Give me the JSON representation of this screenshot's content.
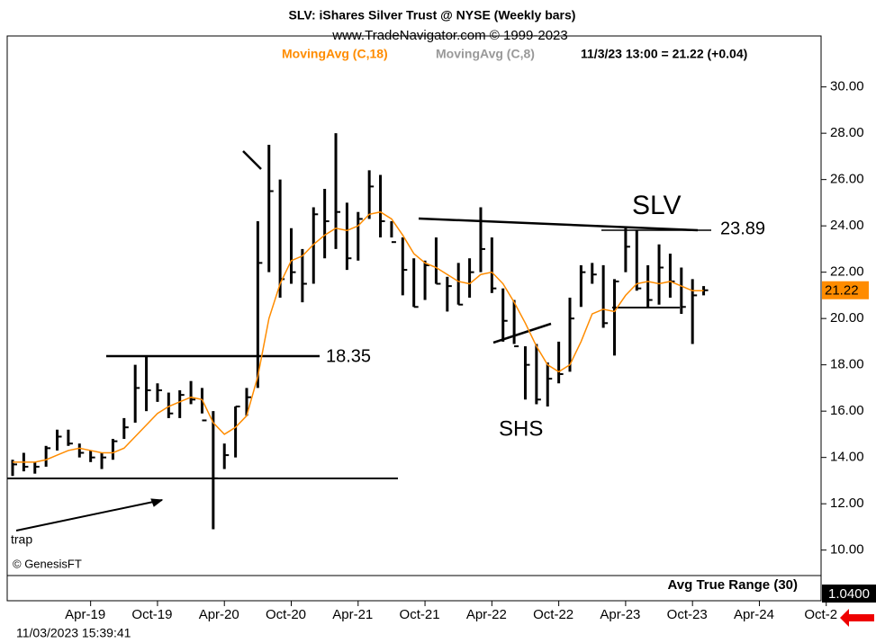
{
  "chart_data": {
    "type": "ohlc",
    "title": "SLV:  iShares Silver Trust @ NYSE  (Weekly bars)",
    "subtitle": "www.TradeNavigator.com © 1999-2023",
    "legend": [
      "MovingAvg (C,18)",
      "MovingAvg (C,8)"
    ],
    "last_quote": "11/3/23 13:00 = 21.22 (+0.04)",
    "last_price_label": "21.22",
    "x": [
      "Sep-18",
      "Oct-18",
      "Nov-18",
      "Dec-18",
      "Jan-19",
      "Feb-19",
      "Mar-19",
      "Apr-19",
      "May-19",
      "Jun-19",
      "Jul-19",
      "Aug-19",
      "Sep-19",
      "Oct-19",
      "Nov-19",
      "Dec-19",
      "Jan-20",
      "Feb-20",
      "Mar-20",
      "Apr-20",
      "May-20",
      "Jun-20",
      "Jul-20",
      "Aug-20",
      "Sep-20",
      "Oct-20",
      "Nov-20",
      "Dec-20",
      "Jan-21",
      "Feb-21",
      "Mar-21",
      "Apr-21",
      "May-21",
      "Jun-21",
      "Jul-21",
      "Aug-21",
      "Sep-21",
      "Oct-21",
      "Nov-21",
      "Dec-21",
      "Jan-22",
      "Feb-22",
      "Mar-22",
      "Apr-22",
      "May-22",
      "Jun-22",
      "Jul-22",
      "Aug-22",
      "Sep-22",
      "Oct-22",
      "Nov-22",
      "Dec-22",
      "Jan-23",
      "Feb-23",
      "Mar-23",
      "Apr-23",
      "May-23",
      "Jun-23",
      "Jul-23",
      "Aug-23",
      "Sep-23",
      "Oct-23",
      "Nov-23"
    ],
    "low": [
      13.2,
      13.4,
      13.3,
      13.6,
      14.3,
      14.5,
      14.0,
      13.8,
      13.5,
      13.9,
      14.8,
      15.5,
      16.0,
      16.4,
      15.7,
      15.7,
      16.3,
      15.9,
      10.9,
      13.5,
      14.0,
      15.8,
      17.0,
      22.0,
      20.9,
      21.5,
      20.7,
      21.5,
      22.6,
      23.0,
      22.1,
      22.5,
      24.3,
      23.5,
      23.5,
      21.0,
      20.5,
      20.8,
      21.5,
      20.3,
      20.6,
      20.9,
      22.0,
      21.1,
      19.0,
      18.9,
      16.5,
      16.3,
      16.2,
      17.2,
      17.7,
      20.5,
      21.5,
      19.6,
      18.4,
      22.0,
      21.2,
      20.5,
      20.6,
      20.9,
      20.2,
      18.9,
      21.0
    ],
    "high": [
      13.9,
      14.2,
      13.8,
      14.5,
      15.2,
      15.2,
      14.6,
      14.3,
      14.2,
      14.8,
      15.7,
      18.0,
      18.35,
      17.2,
      16.8,
      16.9,
      17.3,
      17.0,
      16.0,
      14.6,
      16.2,
      17.0,
      24.2,
      27.5,
      26.0,
      23.9,
      23.0,
      24.8,
      25.6,
      28.0,
      25.0,
      24.6,
      26.4,
      26.2,
      24.2,
      23.5,
      22.6,
      22.5,
      23.5,
      21.8,
      22.4,
      22.6,
      24.8,
      23.5,
      21.3,
      20.8,
      18.8,
      18.9,
      18.1,
      19.0,
      20.9,
      22.3,
      22.4,
      22.3,
      21.7,
      23.9,
      23.8,
      22.3,
      23.2,
      22.8,
      22.2,
      21.7,
      21.4
    ],
    "close": [
      13.7,
      13.6,
      13.6,
      14.4,
      14.9,
      14.6,
      14.2,
      14.0,
      14.0,
      14.7,
      15.3,
      17.0,
      16.9,
      16.9,
      15.9,
      16.7,
      16.5,
      15.6,
      13.1,
      14.1,
      16.2,
      16.6,
      22.4,
      25.5,
      21.7,
      22.0,
      21.5,
      24.5,
      24.2,
      24.6,
      22.6,
      24.3,
      25.7,
      24.2,
      23.3,
      22.1,
      20.5,
      22.3,
      21.5,
      21.4,
      20.6,
      22.0,
      23.0,
      21.3,
      19.9,
      18.8,
      18.0,
      16.5,
      17.4,
      17.6,
      20.0,
      22.0,
      21.9,
      19.8,
      21.6,
      23.1,
      21.3,
      20.8,
      22.2,
      21.6,
      20.5,
      21.0,
      21.22
    ],
    "ma18": [
      13.8,
      13.8,
      13.8,
      13.9,
      14.1,
      14.3,
      14.4,
      14.3,
      14.2,
      14.2,
      14.4,
      14.9,
      15.4,
      15.9,
      16.2,
      16.4,
      16.6,
      16.5,
      15.5,
      15.0,
      15.3,
      15.8,
      17.5,
      20.0,
      21.5,
      22.5,
      22.7,
      23.2,
      23.6,
      23.9,
      23.8,
      24.0,
      24.5,
      24.6,
      24.3,
      23.6,
      22.8,
      22.4,
      22.2,
      21.9,
      21.6,
      21.5,
      21.9,
      22.0,
      21.5,
      20.7,
      19.8,
      18.8,
      18.0,
      17.7,
      18.0,
      19.0,
      20.2,
      20.4,
      20.3,
      21.0,
      21.5,
      21.6,
      21.5,
      21.6,
      21.4,
      21.2,
      21.2
    ],
    "bar_color": "#000000",
    "ma18_color": "#ff8c00",
    "ma8_color": "#999999",
    "ylim": [
      8.9,
      32.2
    ],
    "yticks": [
      {
        "value": 10,
        "label": "10.00"
      },
      {
        "value": 12,
        "label": "12.00"
      },
      {
        "value": 14,
        "label": "14.00"
      },
      {
        "value": 16,
        "label": "16.00"
      },
      {
        "value": 18,
        "label": "18.00"
      },
      {
        "value": 20,
        "label": "20.00"
      },
      {
        "value": 22,
        "label": "22.00"
      },
      {
        "value": 24,
        "label": "24.00"
      },
      {
        "value": 26,
        "label": "26.00"
      },
      {
        "value": 28,
        "label": "28.00"
      },
      {
        "value": 30,
        "label": "30.00"
      }
    ],
    "xticks": [
      "Apr-19",
      "Oct-19",
      "Apr-20",
      "Oct-20",
      "Apr-21",
      "Oct-21",
      "Apr-22",
      "Oct-22",
      "Apr-23",
      "Oct-23",
      "Apr-24",
      "Oct-2"
    ],
    "annotations": [
      "SLV",
      "23.89",
      "18.35",
      "SHS",
      "trap",
      "© GenesisFT"
    ],
    "indicator": "Avg True Range (30)",
    "indicator_value": "1.0400",
    "timestamp": "11/03/2023 15:39:41"
  }
}
